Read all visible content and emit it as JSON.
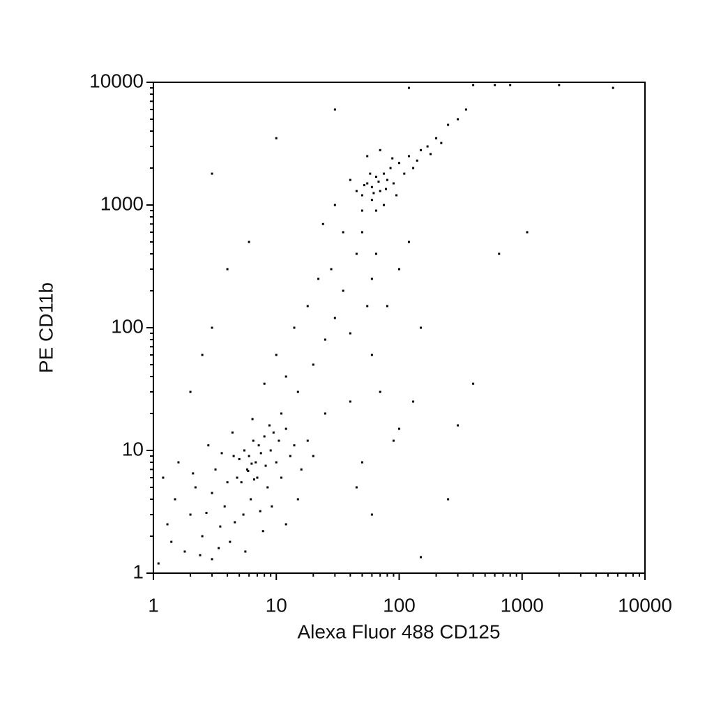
{
  "chart_data": {
    "type": "scatter",
    "xlabel": "Alexa Fluor 488 CD125",
    "ylabel": "PE CD11b",
    "xscale": "log",
    "yscale": "log",
    "color": "#000000",
    "xlim": [
      1,
      10000
    ],
    "ylim": [
      1,
      10000
    ],
    "xticks": [
      1,
      10,
      100,
      1000,
      10000
    ],
    "yticks": [
      1,
      10,
      100,
      1000,
      10000
    ],
    "xminorticks": [
      2,
      3,
      4,
      5,
      6,
      7,
      8,
      9,
      20,
      30,
      40,
      50,
      60,
      70,
      80,
      90,
      200,
      300,
      400,
      500,
      600,
      700,
      800,
      900,
      2000,
      3000,
      4000,
      5000,
      6000,
      7000,
      8000,
      9000
    ],
    "yminorticks": [
      2,
      3,
      4,
      5,
      6,
      7,
      8,
      9,
      20,
      30,
      40,
      50,
      60,
      70,
      80,
      90,
      200,
      300,
      400,
      500,
      600,
      700,
      800,
      900,
      2000,
      3000,
      4000,
      5000,
      6000,
      7000,
      8000,
      9000
    ],
    "x": [
      1.1,
      1.3,
      1.5,
      1.2,
      1.8,
      2,
      2.2,
      2.5,
      2.7,
      3,
      3,
      3.2,
      3.5,
      3.8,
      4,
      4.2,
      4.5,
      4.8,
      5,
      5.2,
      5.5,
      5.8,
      6,
      6.2,
      6.5,
      6.8,
      7,
      7.2,
      7.5,
      8,
      8.2,
      8.5,
      9,
      9.5,
      10,
      10.5,
      11,
      12,
      13,
      14,
      2.4,
      3.4,
      5.6,
      7.8,
      9.2,
      12,
      15,
      1.6,
      2.8,
      4.4,
      6.4,
      5.4,
      4.6,
      6.6,
      8.8,
      3.6,
      2.1,
      1.4,
      11,
      16,
      18,
      20,
      7.4,
      5.9,
      6.3,
      15,
      20,
      25,
      12,
      30,
      18,
      35,
      40,
      28,
      45,
      22,
      50,
      60,
      14,
      10,
      8,
      25,
      40,
      60,
      80,
      100,
      120,
      70,
      50,
      90,
      35,
      24,
      30,
      6,
      4,
      3,
      2.5,
      2,
      55,
      65,
      100,
      130,
      45,
      60,
      150,
      50,
      55,
      60,
      65,
      70,
      75,
      80,
      60,
      50,
      45,
      85,
      90,
      100,
      110,
      120,
      130,
      150,
      170,
      200,
      250,
      300,
      40,
      55,
      70,
      65,
      75,
      95,
      58,
      68,
      62,
      52,
      78,
      88,
      140,
      180,
      220,
      350,
      120,
      400,
      600,
      800,
      2000,
      5500,
      1100,
      650,
      400,
      300,
      250,
      150,
      30,
      10,
      3
    ],
    "values": [
      1.2,
      2.5,
      4,
      6,
      1.5,
      3,
      5,
      2,
      3.1,
      1.3,
      4.5,
      7,
      2.4,
      3.5,
      5.5,
      1.8,
      9,
      6,
      8.5,
      5.5,
      10,
      7,
      9,
      4,
      12,
      8,
      6,
      11,
      9.5,
      13,
      7.5,
      5,
      10,
      14,
      8,
      12,
      6,
      15,
      9,
      11,
      1.4,
      1.6,
      1.5,
      2.2,
      3.5,
      2.5,
      4,
      8,
      11,
      14,
      18,
      3,
      2.6,
      5.8,
      16,
      9.5,
      6.5,
      1.8,
      20,
      7,
      12,
      9,
      3.2,
      6.8,
      7.8,
      30,
      50,
      80,
      40,
      120,
      150,
      200,
      90,
      300,
      400,
      250,
      600,
      250,
      100,
      60,
      35,
      20,
      25,
      60,
      150,
      300,
      500,
      30,
      8,
      12,
      600,
      700,
      1000,
      500,
      300,
      100,
      60,
      30,
      150,
      400,
      15,
      25,
      5,
      3,
      100,
      1200,
      1500,
      1400,
      1700,
      1300,
      1800,
      1600,
      1100,
      900,
      1300,
      2000,
      1500,
      2200,
      1800,
      2500,
      2000,
      2800,
      3000,
      3500,
      4500,
      5000,
      1600,
      2500,
      2800,
      900,
      1000,
      1200,
      1800,
      1550,
      1250,
      1450,
      1350,
      2400,
      2300,
      2600,
      3200,
      6000,
      9000,
      9500,
      9500,
      9500,
      9500,
      9000,
      600,
      400,
      35,
      16,
      4,
      1.35,
      6000,
      3500,
      1800
    ]
  }
}
